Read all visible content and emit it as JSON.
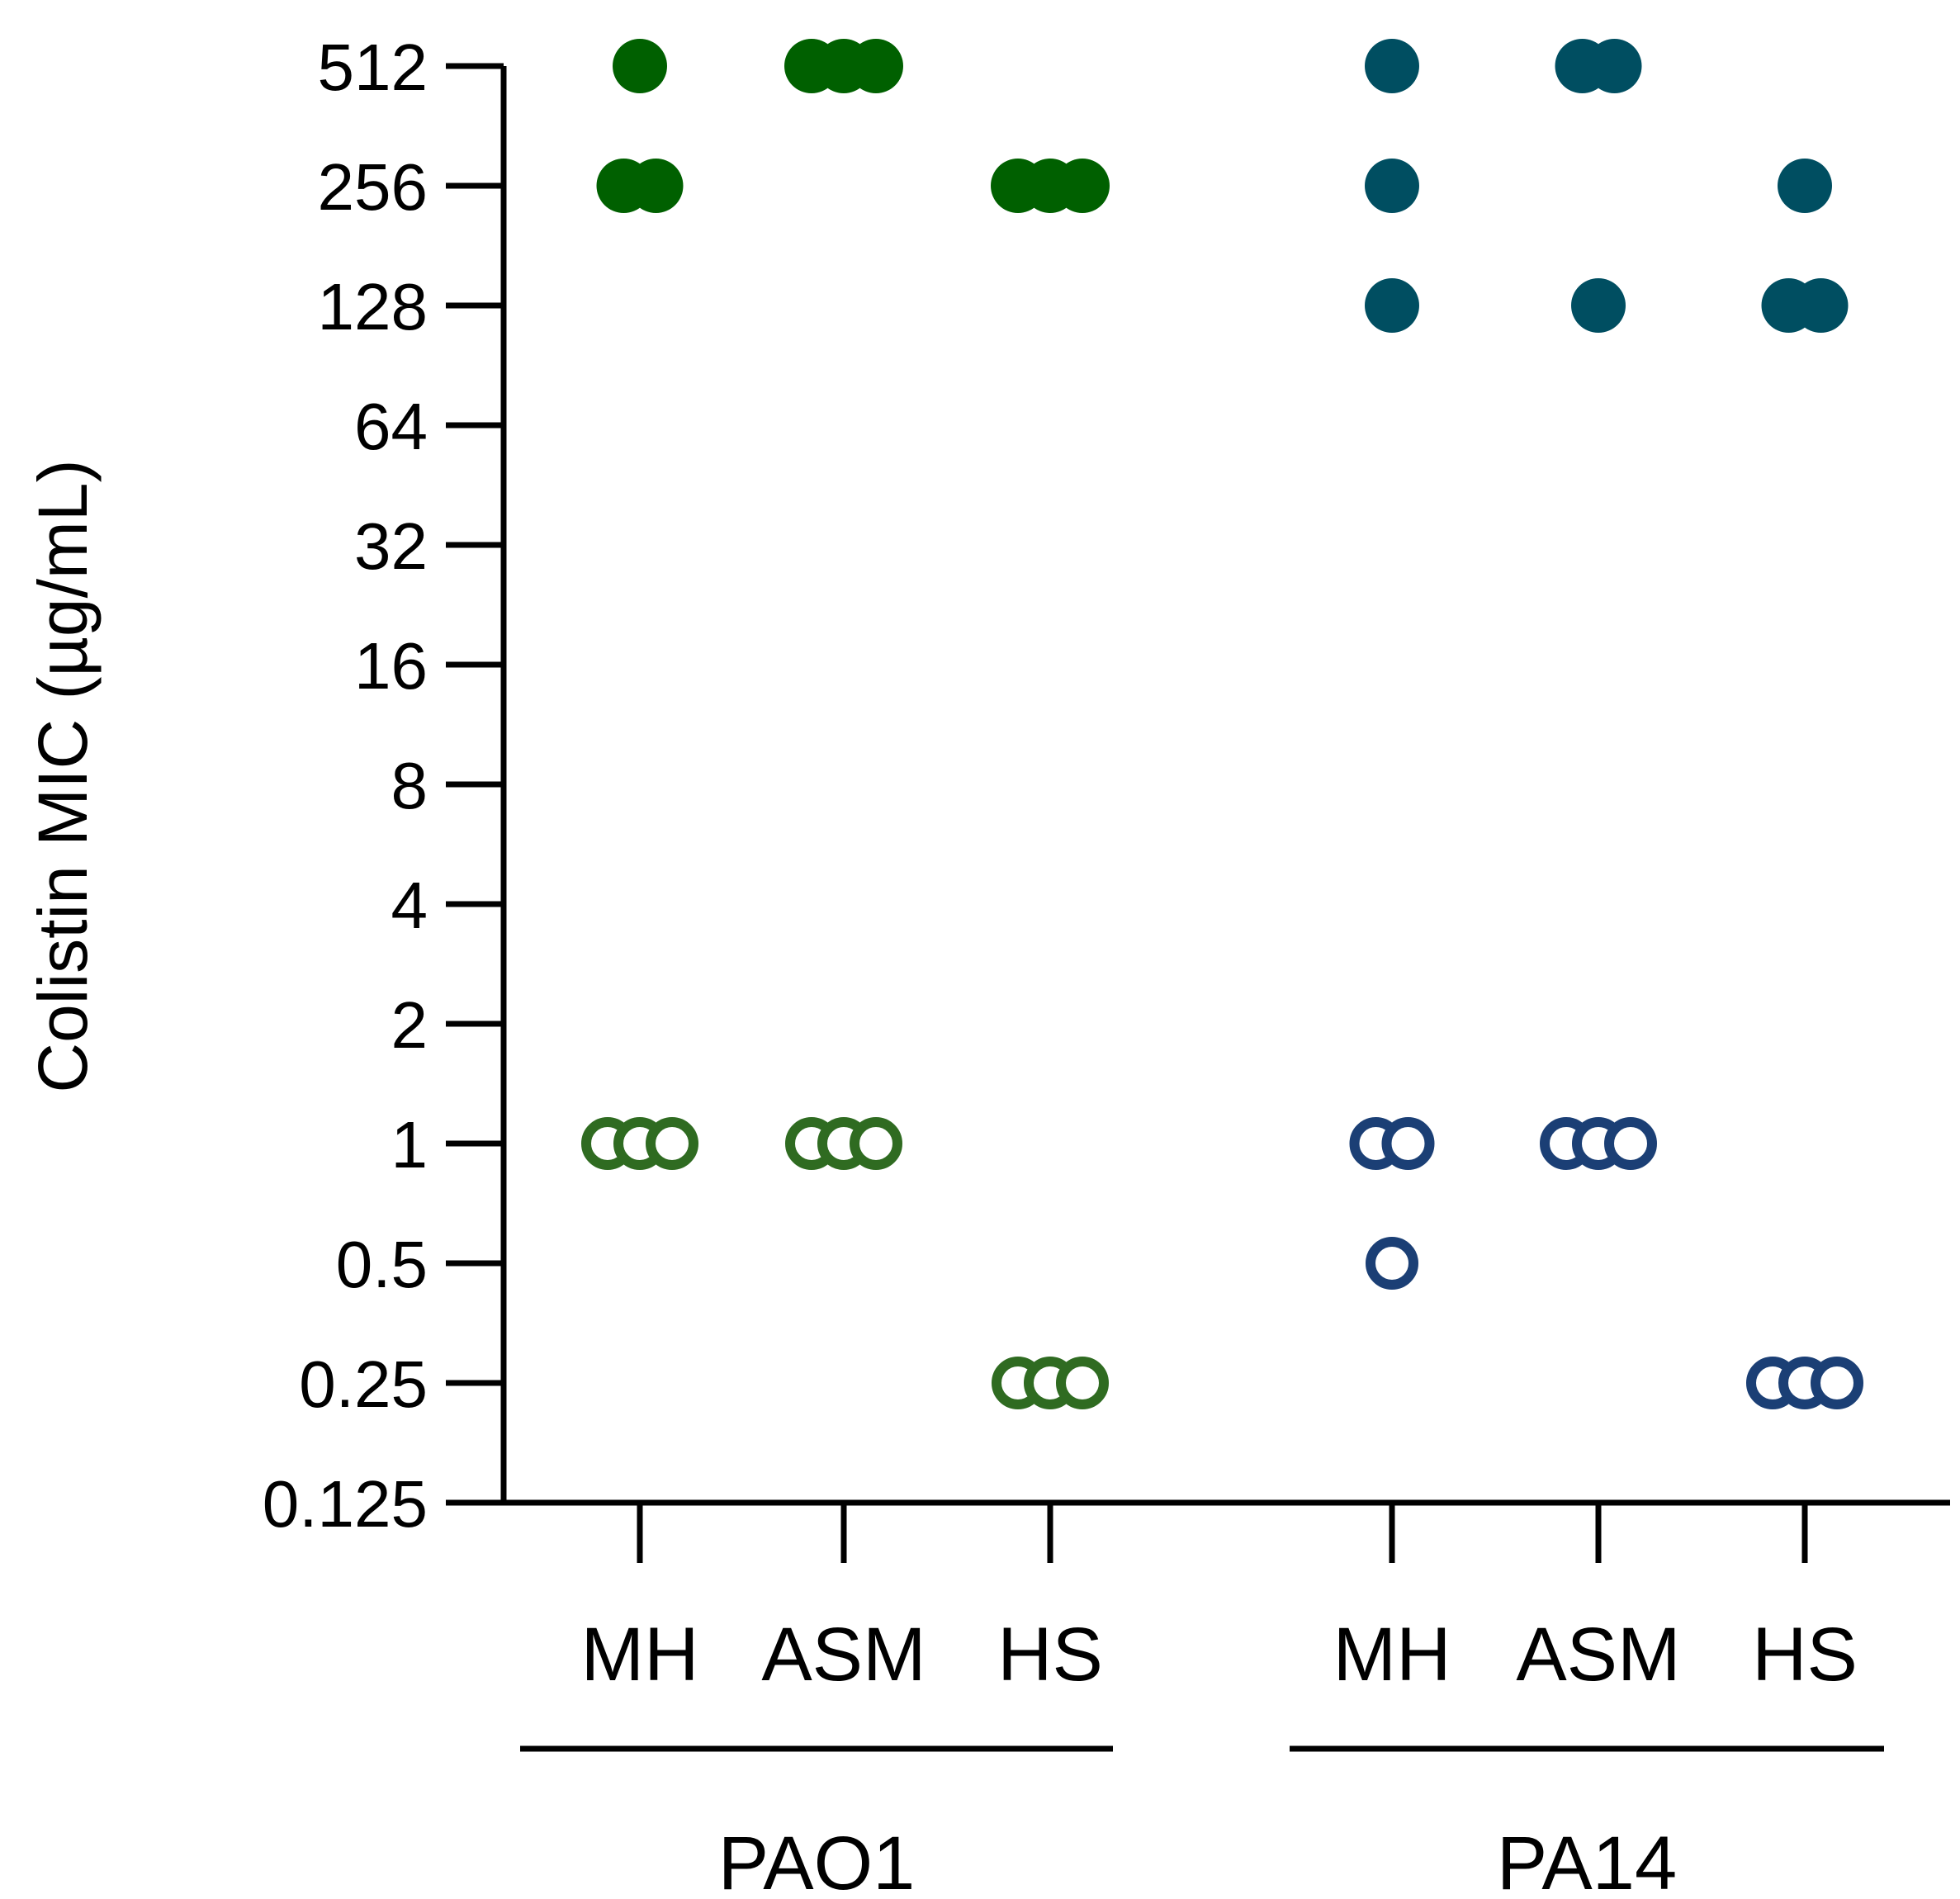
{
  "chart_data": {
    "type": "scatter",
    "title": "",
    "xlabel": "",
    "ylabel": "Colistin MIC (µg/mL)",
    "yscale": "log2",
    "ylim": [
      0.125,
      512
    ],
    "yticks": [
      0.125,
      0.25,
      0.5,
      1,
      2,
      4,
      8,
      16,
      32,
      64,
      128,
      256,
      512
    ],
    "yticklabels": [
      "0.125",
      "0.25",
      "0.5",
      "1",
      "2",
      "4",
      "8",
      "16",
      "32",
      "64",
      "128",
      "256",
      "512"
    ],
    "grid": false,
    "legend": "none",
    "groups": [
      {
        "strain": "PAO1",
        "color_filled": "#006000",
        "color_open": "#2f6b21",
        "conditions": [
          {
            "label": "MH",
            "filled": [
              512,
              256,
              256
            ],
            "open": [
              1,
              1,
              1
            ]
          },
          {
            "label": "ASM",
            "filled": [
              512,
              512,
              512
            ],
            "open": [
              1,
              1,
              1
            ]
          },
          {
            "label": "HS",
            "filled": [
              256,
              256,
              256
            ],
            "open": [
              0.25,
              0.25,
              0.25
            ]
          }
        ]
      },
      {
        "strain": "PA14",
        "color_filled": "#004e61",
        "color_open": "#1b3f75",
        "conditions": [
          {
            "label": "MH",
            "filled": [
              512,
              256,
              128
            ],
            "open": [
              1,
              1,
              0.5
            ]
          },
          {
            "label": "ASM",
            "filled": [
              512,
              512,
              128
            ],
            "open": [
              1,
              1,
              1
            ]
          },
          {
            "label": "HS",
            "filled": [
              256,
              128,
              128
            ],
            "open": [
              0.25,
              0.25,
              0.25
            ]
          }
        ]
      }
    ]
  }
}
